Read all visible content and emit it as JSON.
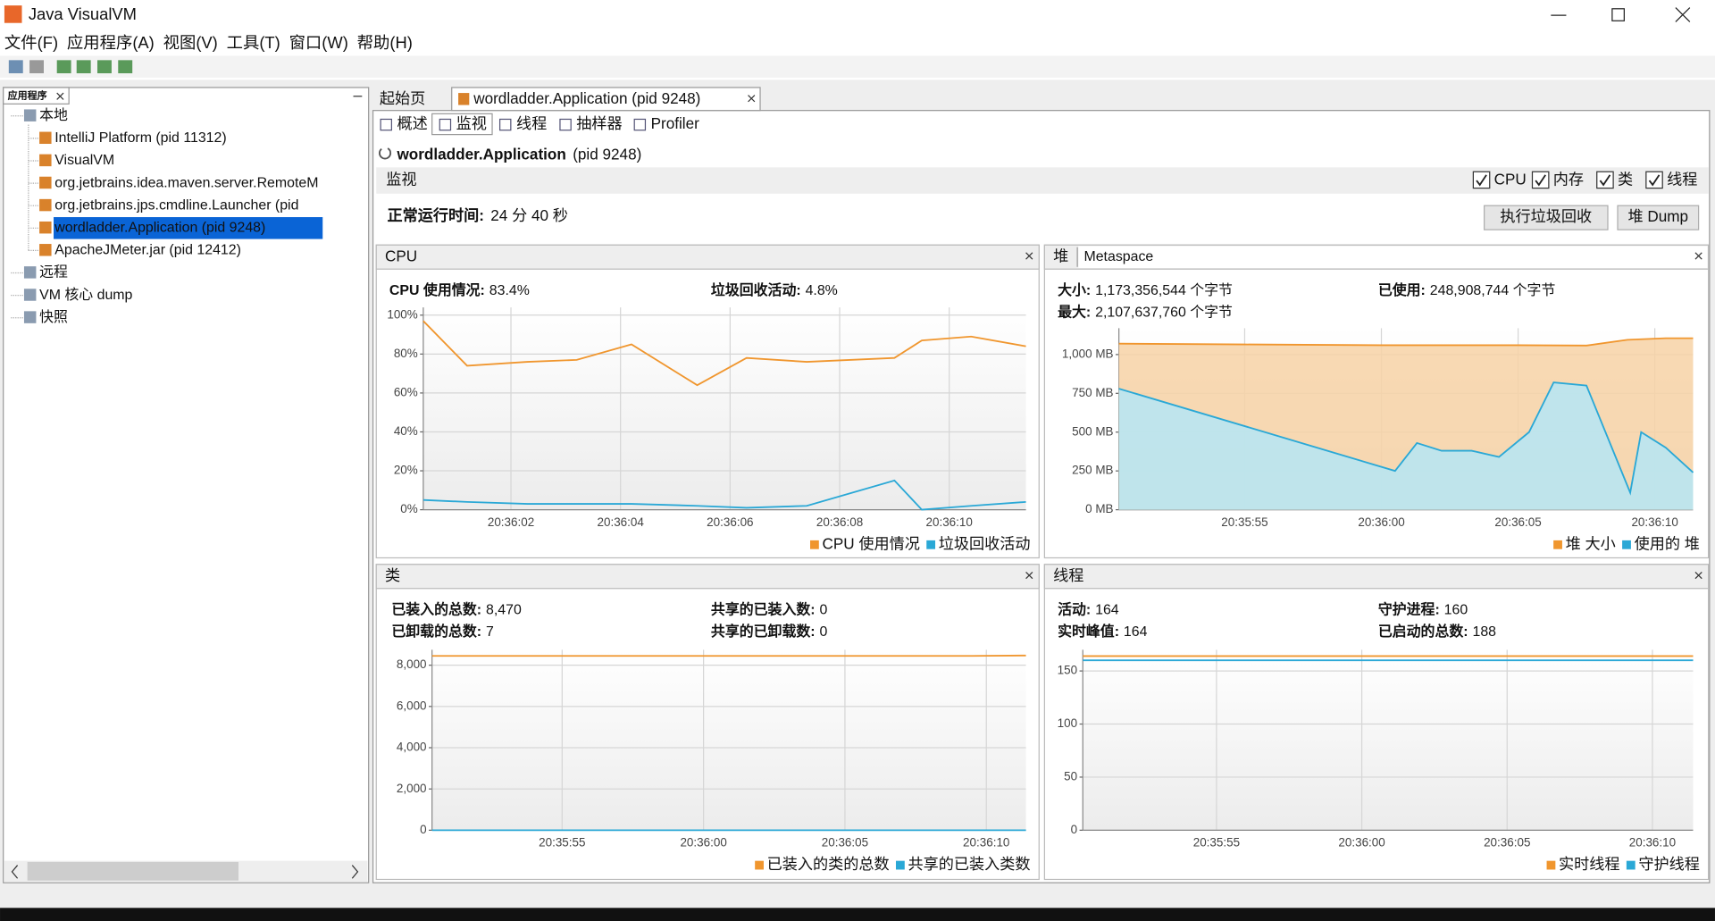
{
  "window": {
    "title": "Java VisualVM"
  },
  "menu": [
    "文件(F)",
    "应用程序(A)",
    "视图(V)",
    "工具(T)",
    "窗口(W)",
    "帮助(H)"
  ],
  "sidebar": {
    "title": "应用程序",
    "tree": [
      "本地",
      "IntelliJ Platform (pid 11312)",
      "VisualVM",
      "org.jetbrains.idea.maven.server.RemoteM",
      "org.jetbrains.jps.cmdline.Launcher (pid",
      "wordladder.Application (pid 9248)",
      "ApacheJMeter.jar (pid 12412)",
      "远程",
      "VM 核心 dump",
      "快照"
    ]
  },
  "tabs": [
    "起始页",
    "wordladder.Application (pid 9248)"
  ],
  "subtabs": [
    "概述",
    "监视",
    "线程",
    "抽样器",
    "Profiler"
  ],
  "header": {
    "app": "wordladder.Application",
    "pid": "(pid 9248)",
    "section": "监视",
    "checkboxes": [
      "CPU",
      "内存",
      "类",
      "线程"
    ],
    "uptime_label": "正常运行时间:",
    "uptime": "24 分 40 秒",
    "buttons": [
      "执行垃圾回收",
      "堆 Dump"
    ]
  },
  "chart_data": [
    {
      "type": "line",
      "title": "CPU",
      "stats": [
        [
          {
            "label": "CPU 使用情况:",
            "value": "83.4%"
          },
          {
            "label": "垃圾回收活动:",
            "value": "4.8%"
          }
        ]
      ],
      "xlim": [
        74160.4,
        74171.4
      ],
      "xticks": [
        {
          "value": 74162,
          "label": "20:36:02"
        },
        {
          "value": 74164,
          "label": "20:36:04"
        },
        {
          "value": 74166,
          "label": "20:36:06"
        },
        {
          "value": 74168,
          "label": "20:36:08"
        },
        {
          "value": 74170,
          "label": "20:36:10"
        }
      ],
      "ylim": [
        0,
        104
      ],
      "yticks": [
        {
          "value": 0,
          "label": "0%"
        },
        {
          "value": 20,
          "label": "20%"
        },
        {
          "value": 40,
          "label": "40%"
        },
        {
          "value": 60,
          "label": "60%"
        },
        {
          "value": 80,
          "label": "80%"
        },
        {
          "value": 100,
          "label": "100%"
        }
      ],
      "series": [
        {
          "name": "CPU 使用情况",
          "color": "#f0962e",
          "x": [
            74160.4,
            74161.2,
            74162.3,
            74163.2,
            74164.2,
            74165.4,
            74166.3,
            74167.4,
            74169.0,
            74169.5,
            74170.4,
            74171.4
          ],
          "values": [
            97,
            74,
            76,
            77,
            85,
            64,
            78,
            76,
            78,
            87,
            89,
            84
          ]
        },
        {
          "name": "垃圾回收活动",
          "color": "#2aa8d6",
          "x": [
            74160.4,
            74161.2,
            74162.3,
            74163.2,
            74164.2,
            74165.4,
            74166.3,
            74167.4,
            74169.0,
            74169.5,
            74170.4,
            74171.4
          ],
          "values": [
            5,
            4,
            3,
            3,
            3,
            2,
            1,
            2,
            15,
            0,
            2,
            4
          ]
        }
      ]
    },
    {
      "type": "area",
      "title": "堆",
      "alt_tab": "Metaspace",
      "stats": [
        [
          {
            "label": "大小:",
            "value": "1,173,356,544 个字节"
          },
          {
            "label": "已使用:",
            "value": "248,908,744 个字节"
          }
        ],
        [
          {
            "label": "最大:",
            "value": "2,107,637,760 个字节"
          }
        ]
      ],
      "xlim": [
        74150.4,
        74171.4
      ],
      "xticks": [
        {
          "value": 74155,
          "label": "20:35:55"
        },
        {
          "value": 74160,
          "label": "20:36:00"
        },
        {
          "value": 74165,
          "label": "20:36:05"
        },
        {
          "value": 74170,
          "label": "20:36:10"
        }
      ],
      "ylim": [
        0,
        1170
      ],
      "yticks": [
        {
          "value": 0,
          "label": "0 MB"
        },
        {
          "value": 250,
          "label": "250 MB"
        },
        {
          "value": 500,
          "label": "500 MB"
        },
        {
          "value": 750,
          "label": "750 MB"
        },
        {
          "value": 1000,
          "label": "1,000 MB"
        }
      ],
      "series": [
        {
          "name": "堆 大小",
          "color": "#f0962e",
          "fill": "#f7d2a6",
          "x": [
            74150.4,
            74155,
            74160,
            74165,
            74167.5,
            74169,
            74170.4,
            74171.4
          ],
          "values": [
            1070,
            1065,
            1060,
            1060,
            1058,
            1095,
            1105,
            1105
          ]
        },
        {
          "name": "使用的 堆",
          "color": "#2aa8d6",
          "fill": "#b5e6f6",
          "x": [
            74150.4,
            74160.5,
            74161.3,
            74162.2,
            74163.3,
            74164.3,
            74165.4,
            74166.3,
            74167.5,
            74169.1,
            74169.5,
            74170.4,
            74171.4
          ],
          "values": [
            780,
            250,
            430,
            380,
            380,
            340,
            500,
            820,
            800,
            110,
            500,
            400,
            240
          ]
        }
      ]
    },
    {
      "type": "line",
      "title": "类",
      "stats": [
        [
          {
            "label": "已装入的总数:",
            "value": "8,470"
          },
          {
            "label": "共享的已装入数:",
            "value": "0"
          }
        ],
        [
          {
            "label": "已卸载的总数:",
            "value": "7"
          },
          {
            "label": "共享的已卸载数:",
            "value": "0"
          }
        ]
      ],
      "xlim": [
        74150.4,
        74171.4
      ],
      "xticks": [
        {
          "value": 74155,
          "label": "20:35:55"
        },
        {
          "value": 74160,
          "label": "20:36:00"
        },
        {
          "value": 74165,
          "label": "20:36:05"
        },
        {
          "value": 74170,
          "label": "20:36:10"
        }
      ],
      "ylim": [
        0,
        8750
      ],
      "yticks": [
        0,
        {
          "value": 2000,
          "label": "2,000"
        },
        {
          "value": 4000,
          "label": "4,000"
        },
        {
          "value": 6000,
          "label": "6,000"
        },
        {
          "value": 8000,
          "label": "8,000"
        }
      ],
      "series": [
        {
          "name": "已装入的类的总数",
          "color": "#f0962e",
          "x": [
            74150.4,
            74169.5,
            74171.4
          ],
          "values": [
            8450,
            8450,
            8470
          ]
        },
        {
          "name": "共享的已装入类数",
          "color": "#2aa8d6",
          "x": [
            74150.4,
            74171.4
          ],
          "values": [
            0,
            0
          ]
        }
      ]
    },
    {
      "type": "line",
      "title": "线程",
      "stats": [
        [
          {
            "label": "活动:",
            "value": "164"
          },
          {
            "label": "守护进程:",
            "value": "160"
          }
        ],
        [
          {
            "label": "实时峰值:",
            "value": "164"
          },
          {
            "label": "已启动的总数:",
            "value": "188"
          }
        ]
      ],
      "xlim": [
        74150.4,
        74171.4
      ],
      "xticks": [
        {
          "value": 74155,
          "label": "20:35:55"
        },
        {
          "value": 74160,
          "label": "20:36:00"
        },
        {
          "value": 74165,
          "label": "20:36:05"
        },
        {
          "value": 74170,
          "label": "20:36:10"
        }
      ],
      "ylim": [
        0,
        170
      ],
      "yticks": [
        0,
        50,
        100,
        150
      ],
      "series": [
        {
          "name": "实时线程",
          "color": "#f0962e",
          "x": [
            74150.4,
            74171.4
          ],
          "values": [
            164,
            164
          ]
        },
        {
          "name": "守护线程",
          "color": "#2aa8d6",
          "x": [
            74150.4,
            74171.4
          ],
          "values": [
            160,
            160
          ]
        }
      ]
    }
  ]
}
